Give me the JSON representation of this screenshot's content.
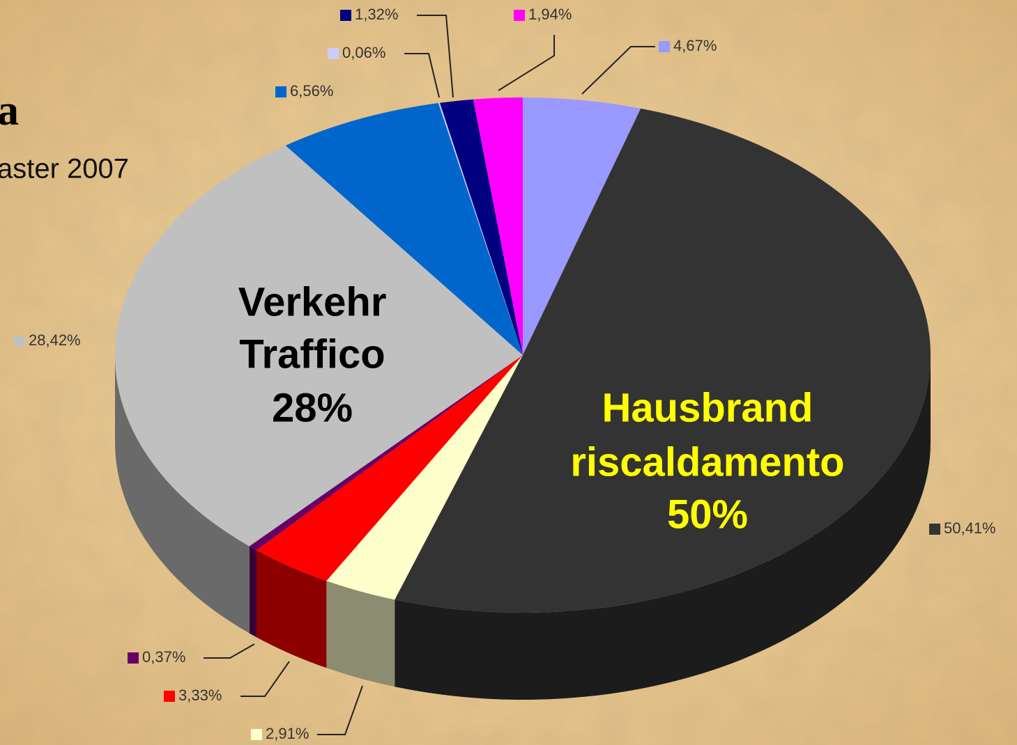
{
  "chart_data": {
    "type": "pie",
    "title": "a",
    "subtitle": "aster 2007",
    "values": [
      4.67,
      50.41,
      2.91,
      3.33,
      0.37,
      28.42,
      6.56,
      0.06,
      1.32,
      1.94
    ],
    "value_labels": [
      "4,67%",
      "50,41%",
      "2,91%",
      "3,33%",
      "0,37%",
      "28,42%",
      "6,56%",
      "0,06%",
      "1,32%",
      "1,94%"
    ],
    "colors": [
      "#9999ff",
      "#333333",
      "#ffffcc",
      "#ff0000",
      "#660066",
      "#c0c0c0",
      "#0066cc",
      "#ccccff",
      "#000080",
      "#ff00ff"
    ],
    "annotations": [
      {
        "text": [
          "Verkehr",
          "Traffico",
          "28%"
        ],
        "color": "#000000"
      },
      {
        "text": [
          "Hausbrand",
          "riscaldamento",
          "50%"
        ],
        "color": "#ffff00"
      }
    ]
  }
}
